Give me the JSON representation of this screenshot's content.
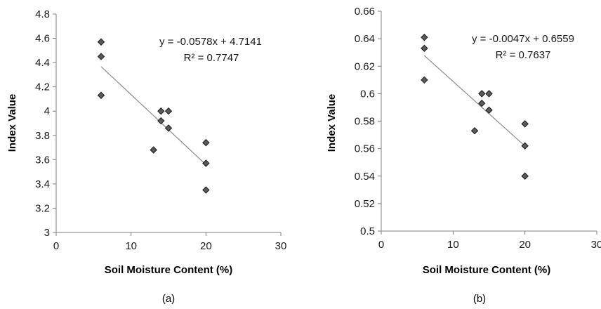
{
  "chart_data": [
    {
      "type": "scatter",
      "panel_label": "(a)",
      "xlabel": "Soil Moisture Content (%)",
      "ylabel": "Index Value",
      "xlim": [
        0,
        30
      ],
      "ylim": [
        3,
        4.8
      ],
      "x_ticks": [
        "0",
        "10",
        "20",
        "30"
      ],
      "y_ticks": [
        "3",
        "3.2",
        "3.4",
        "3.6",
        "3.8",
        "4",
        "4.2",
        "4.4",
        "4.6",
        "4.8"
      ],
      "x_tick_values": [
        0,
        10,
        20,
        30
      ],
      "y_tick_values": [
        3,
        3.2,
        3.4,
        3.6,
        3.8,
        4.0,
        4.2,
        4.4,
        4.6,
        4.8
      ],
      "points": [
        {
          "x": 6,
          "y": 4.57
        },
        {
          "x": 6,
          "y": 4.45
        },
        {
          "x": 6,
          "y": 4.13
        },
        {
          "x": 13,
          "y": 3.68
        },
        {
          "x": 14,
          "y": 4.0
        },
        {
          "x": 14,
          "y": 3.92
        },
        {
          "x": 15,
          "y": 4.0
        },
        {
          "x": 15,
          "y": 3.86
        },
        {
          "x": 20,
          "y": 3.74
        },
        {
          "x": 20,
          "y": 3.57
        },
        {
          "x": 20,
          "y": 3.35
        }
      ],
      "trendline": {
        "slope": -0.0578,
        "intercept": 4.7141,
        "x_range": [
          6,
          20
        ]
      },
      "equation": "y = -0.0578x + 4.7141",
      "r_squared": "R² = 0.7747",
      "grid": false,
      "legend": false,
      "marker": "diamond",
      "marker_color": "#5a5a5a"
    },
    {
      "type": "scatter",
      "panel_label": "(b)",
      "xlabel": "Soil Moisture Content (%)",
      "ylabel": "Index Value",
      "xlim": [
        0,
        30
      ],
      "ylim": [
        0.5,
        0.66
      ],
      "x_ticks": [
        "0",
        "10",
        "20",
        "30"
      ],
      "y_ticks": [
        "0.5",
        "0.52",
        "0.54",
        "0.56",
        "0.58",
        "0.6",
        "0.62",
        "0.64",
        "0.66"
      ],
      "x_tick_values": [
        0,
        10,
        20,
        30
      ],
      "y_tick_values": [
        0.5,
        0.52,
        0.54,
        0.56,
        0.58,
        0.6,
        0.62,
        0.64,
        0.66
      ],
      "points": [
        {
          "x": 6,
          "y": 0.641
        },
        {
          "x": 6,
          "y": 0.633
        },
        {
          "x": 6,
          "y": 0.61
        },
        {
          "x": 13,
          "y": 0.573
        },
        {
          "x": 14,
          "y": 0.6
        },
        {
          "x": 14,
          "y": 0.593
        },
        {
          "x": 15,
          "y": 0.6
        },
        {
          "x": 15,
          "y": 0.588
        },
        {
          "x": 20,
          "y": 0.578
        },
        {
          "x": 20,
          "y": 0.562
        },
        {
          "x": 20,
          "y": 0.54
        }
      ],
      "trendline": {
        "slope": -0.0047,
        "intercept": 0.6559,
        "x_range": [
          6,
          20
        ]
      },
      "equation": "y = -0.0047x + 0.6559",
      "r_squared": "R² = 0.7637",
      "grid": false,
      "legend": false,
      "marker": "diamond",
      "marker_color": "#5a5a5a"
    }
  ]
}
